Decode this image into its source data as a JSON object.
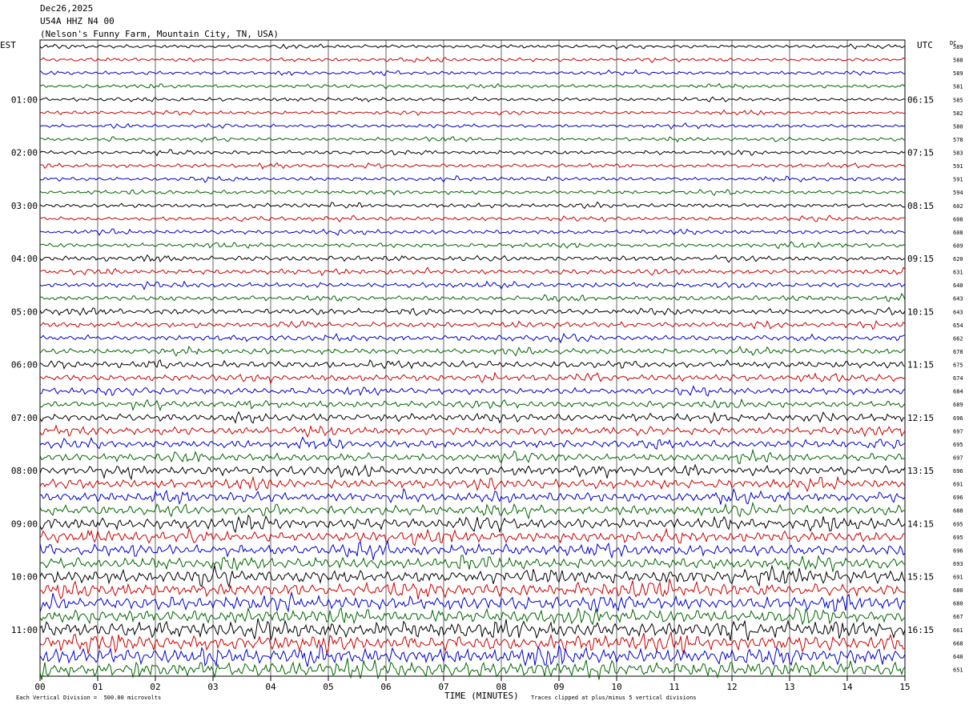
{
  "header": {
    "date": "Dec26,2025",
    "station": "U54A HHZ N4 00",
    "location": "(Nelson's Funny Farm, Mountain City, TN, USA)"
  },
  "labels": {
    "left_zone": "EST",
    "right_zone": "UTC",
    "dc_header": "DC",
    "xlabel": "TIME (MINUTES)",
    "scale_note": "Each Vertical Division =  500.00 microvolts",
    "clip_note": "Traces clipped at plus/minus 5 vertical divisions"
  },
  "colors": {
    "cycle": [
      "#000000",
      "#cc0000",
      "#0000cc",
      "#006600"
    ],
    "grid": "#000000"
  },
  "chart_data": {
    "type": "line",
    "title": "U54A HHZ N4 00",
    "xlabel": "TIME (MINUTES)",
    "xlim": [
      0,
      15
    ],
    "x_ticks": [
      "00",
      "01",
      "02",
      "03",
      "04",
      "05",
      "06",
      "07",
      "08",
      "09",
      "10",
      "11",
      "12",
      "13",
      "14",
      "15"
    ],
    "trace_count": 48,
    "left_time_labels": [
      "01:00",
      "02:00",
      "03:00",
      "04:00",
      "05:00",
      "06:00",
      "07:00",
      "08:00",
      "09:00",
      "10:00",
      "11:00"
    ],
    "right_time_labels": [
      "06:15",
      "07:15",
      "08:15",
      "09:15",
      "10:15",
      "11:15",
      "12:15",
      "13:15",
      "14:15",
      "15:15",
      "16:15"
    ],
    "dc_offsets": [
      589,
      588,
      589,
      581,
      585,
      582,
      580,
      578,
      583,
      591,
      591,
      594,
      602,
      608,
      608,
      609,
      620,
      631,
      640,
      643,
      643,
      654,
      662,
      678,
      675,
      674,
      684,
      689,
      696,
      697,
      695,
      697,
      696,
      691,
      696,
      688,
      695,
      695,
      696,
      693,
      691,
      680,
      680,
      667,
      661,
      668,
      640,
      651
    ],
    "amplitude_by_hour": [
      1,
      1,
      1.1,
      1.2,
      1.4,
      1.6,
      1.9,
      2.2,
      2.7,
      3.2,
      3.8,
      4.4
    ]
  }
}
